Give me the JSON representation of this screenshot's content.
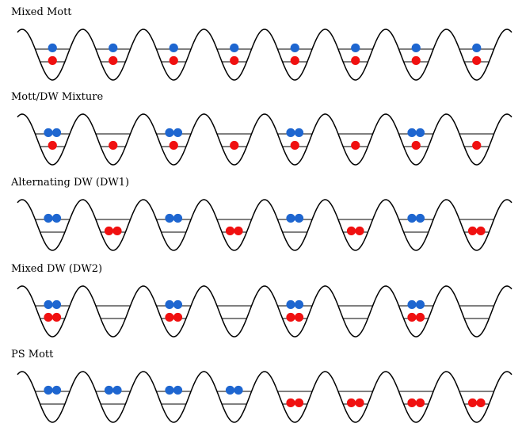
{
  "panels": [
    {
      "title": "Mixed Mott",
      "wells": [
        {
          "blue": 1,
          "red": 1
        },
        {
          "blue": 1,
          "red": 1
        },
        {
          "blue": 1,
          "red": 1
        },
        {
          "blue": 1,
          "red": 1
        },
        {
          "blue": 1,
          "red": 1
        },
        {
          "blue": 1,
          "red": 1
        },
        {
          "blue": 1,
          "red": 1
        },
        {
          "blue": 1,
          "red": 1
        }
      ]
    },
    {
      "title": "Mott/DW Mixture",
      "wells": [
        {
          "blue": 2,
          "red": 1
        },
        {
          "blue": 0,
          "red": 1
        },
        {
          "blue": 2,
          "red": 1
        },
        {
          "blue": 0,
          "red": 1
        },
        {
          "blue": 2,
          "red": 1
        },
        {
          "blue": 0,
          "red": 1
        },
        {
          "blue": 2,
          "red": 1
        },
        {
          "blue": 0,
          "red": 1
        }
      ]
    },
    {
      "title": "Alternating DW (DW1)",
      "wells": [
        {
          "blue": 2,
          "red": 0
        },
        {
          "blue": 0,
          "red": 2
        },
        {
          "blue": 2,
          "red": 0
        },
        {
          "blue": 0,
          "red": 2
        },
        {
          "blue": 2,
          "red": 0
        },
        {
          "blue": 0,
          "red": 2
        },
        {
          "blue": 2,
          "red": 0
        },
        {
          "blue": 0,
          "red": 2
        }
      ]
    },
    {
      "title": "Mixed DW (DW2)",
      "wells": [
        {
          "blue": 2,
          "red": 2
        },
        {
          "blue": 0,
          "red": 0
        },
        {
          "blue": 2,
          "red": 2
        },
        {
          "blue": 0,
          "red": 0
        },
        {
          "blue": 2,
          "red": 2
        },
        {
          "blue": 0,
          "red": 0
        },
        {
          "blue": 2,
          "red": 2
        },
        {
          "blue": 0,
          "red": 0
        }
      ]
    },
    {
      "title": "PS Mott",
      "wells": [
        {
          "blue": 2,
          "red": 0
        },
        {
          "blue": 2,
          "red": 0
        },
        {
          "blue": 2,
          "red": 0
        },
        {
          "blue": 2,
          "red": 0
        },
        {
          "blue": 0,
          "red": 2
        },
        {
          "blue": 0,
          "red": 2
        },
        {
          "blue": 0,
          "red": 2
        },
        {
          "blue": 0,
          "red": 2
        }
      ]
    }
  ],
  "colors": {
    "blue": "#1e66d0",
    "red": "#f01010",
    "line": "#000000"
  }
}
